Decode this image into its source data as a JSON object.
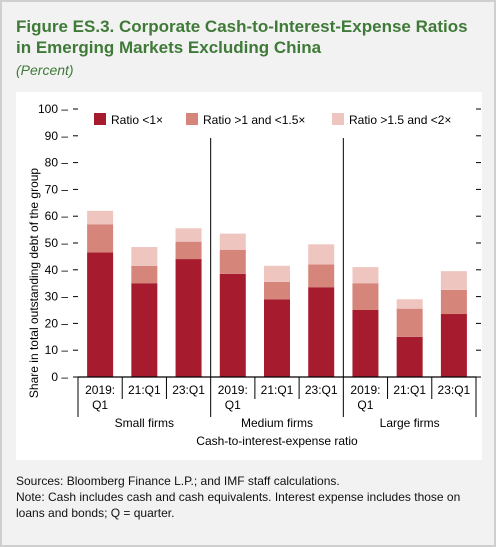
{
  "figure": {
    "title": "Figure ES.3. Corporate Cash-to-Interest-Expense Ratios in Emerging Markets Excluding China",
    "subtitle": "(Percent)"
  },
  "notes": {
    "sources": "Sources: Bloomberg Finance L.P.; and IMF staff calculations.",
    "note": "Note: Cash includes cash and cash equivalents. Interest expense includes those on loans and bonds; Q = quarter."
  },
  "chart_data": {
    "type": "bar",
    "stacked": true,
    "ylabel": "Share in total outstanding debt of the group",
    "xlabel": "Cash-to-interest-expense ratio",
    "ylim": [
      0,
      100
    ],
    "yticks": [
      0,
      10,
      20,
      30,
      40,
      50,
      60,
      70,
      80,
      90,
      100
    ],
    "legend_position": "top",
    "groups": [
      {
        "label": "Small firms",
        "categories": [
          [
            "2019:",
            "Q1"
          ],
          [
            "21:Q1"
          ],
          [
            "23:Q1"
          ]
        ]
      },
      {
        "label": "Medium firms",
        "categories": [
          [
            "2019:",
            "Q1"
          ],
          [
            "21:Q1"
          ],
          [
            "23:Q1"
          ]
        ]
      },
      {
        "label": "Large firms",
        "categories": [
          [
            "2019:",
            "Q1"
          ],
          [
            "21:Q1"
          ],
          [
            "23:Q1"
          ]
        ]
      }
    ],
    "series": [
      {
        "name": "Ratio <1×",
        "color": "#a61c2e",
        "values": [
          46.5,
          35,
          44,
          38.5,
          29,
          33.5,
          25,
          15,
          23.5
        ]
      },
      {
        "name": "Ratio >1 and <1.5×",
        "color": "#d6857b",
        "values": [
          10.5,
          6.5,
          6.5,
          9,
          6.5,
          8.5,
          10,
          10.5,
          9
        ]
      },
      {
        "name": "Ratio >1.5 and <2×",
        "color": "#efc5c0",
        "values": [
          5,
          7,
          5,
          6,
          6,
          7.5,
          6,
          3.5,
          7
        ]
      }
    ]
  }
}
